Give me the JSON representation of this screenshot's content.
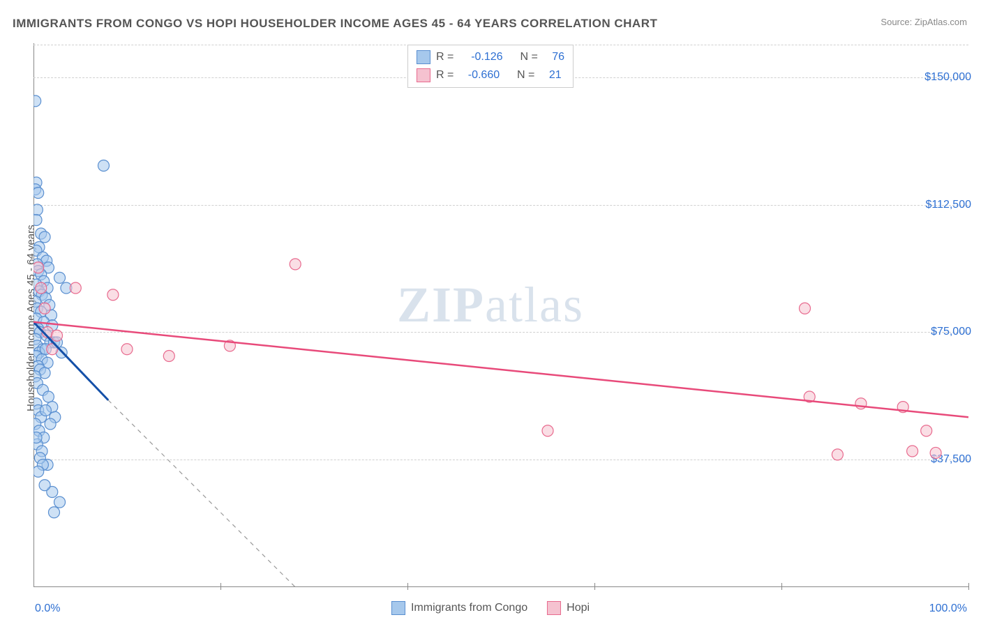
{
  "title": "IMMIGRANTS FROM CONGO VS HOPI HOUSEHOLDER INCOME AGES 45 - 64 YEARS CORRELATION CHART",
  "source_label": "Source:",
  "source_name": "ZipAtlas.com",
  "watermark": "ZIPatlas",
  "chart": {
    "type": "scatter",
    "ylabel": "Householder Income Ages 45 - 64 years",
    "xlim": [
      0,
      100
    ],
    "ylim": [
      0,
      160000
    ],
    "xticks": [
      0,
      20,
      40,
      60,
      80,
      100
    ],
    "xtick_labels": {
      "0": "0.0%",
      "100": "100.0%"
    },
    "yticks": [
      37500,
      75000,
      112500,
      150000
    ],
    "ytick_labels": [
      "$37,500",
      "$75,000",
      "$112,500",
      "$150,000"
    ],
    "grid_color": "#d0d0d0",
    "axis_color": "#888888",
    "background_color": "#ffffff",
    "point_radius": 8,
    "point_opacity": 0.55,
    "series": [
      {
        "name": "Immigrants from Congo",
        "color_fill": "#a6c8ec",
        "color_stroke": "#5a8fd0",
        "R": "-0.126",
        "N": "76",
        "line_color": "#1450a8",
        "line_dash_color": "#999999",
        "line": {
          "x1": 0,
          "y1": 78000,
          "x2": 8,
          "y2": 55000
        },
        "line_dash": {
          "x1": 8,
          "y1": 55000,
          "x2": 28,
          "y2": 0
        },
        "points": [
          [
            0.2,
            143000
          ],
          [
            0.3,
            119000
          ],
          [
            0.2,
            117000
          ],
          [
            0.5,
            116000
          ],
          [
            0.4,
            111000
          ],
          [
            0.3,
            108000
          ],
          [
            0.8,
            104000
          ],
          [
            1.2,
            103000
          ],
          [
            0.6,
            100000
          ],
          [
            0.3,
            99000
          ],
          [
            1.0,
            97000
          ],
          [
            1.4,
            96000
          ],
          [
            0.4,
            95000
          ],
          [
            1.6,
            94000
          ],
          [
            0.5,
            93000
          ],
          [
            0.8,
            92000
          ],
          [
            2.8,
            91000
          ],
          [
            1.1,
            90000
          ],
          [
            0.3,
            89000
          ],
          [
            1.5,
            88000
          ],
          [
            3.5,
            88000
          ],
          [
            0.6,
            87000
          ],
          [
            0.9,
            86000
          ],
          [
            1.3,
            85000
          ],
          [
            0.2,
            84000
          ],
          [
            1.7,
            83000
          ],
          [
            0.4,
            82000
          ],
          [
            0.8,
            81000
          ],
          [
            1.9,
            80000
          ],
          [
            0.3,
            79000
          ],
          [
            1.1,
            78000
          ],
          [
            2.0,
            77000
          ],
          [
            0.5,
            76000
          ],
          [
            0.7,
            75000
          ],
          [
            1.4,
            74000
          ],
          [
            0.2,
            73000
          ],
          [
            1.8,
            72000
          ],
          [
            2.2,
            72000
          ],
          [
            0.4,
            71000
          ],
          [
            1.0,
            70000
          ],
          [
            0.6,
            69000
          ],
          [
            2.5,
            72000
          ],
          [
            1.3,
            70000
          ],
          [
            3.0,
            69000
          ],
          [
            0.3,
            68000
          ],
          [
            0.9,
            67000
          ],
          [
            1.5,
            66000
          ],
          [
            0.5,
            65000
          ],
          [
            0.7,
            64000
          ],
          [
            1.2,
            63000
          ],
          [
            0.2,
            62000
          ],
          [
            0.4,
            60000
          ],
          [
            1.0,
            58000
          ],
          [
            1.6,
            56000
          ],
          [
            0.3,
            54000
          ],
          [
            2.0,
            53000
          ],
          [
            0.5,
            52000
          ],
          [
            0.8,
            50000
          ],
          [
            1.3,
            52000
          ],
          [
            0.2,
            48000
          ],
          [
            0.6,
            46000
          ],
          [
            1.1,
            44000
          ],
          [
            2.3,
            50000
          ],
          [
            1.8,
            48000
          ],
          [
            0.4,
            42000
          ],
          [
            0.9,
            40000
          ],
          [
            1.5,
            36000
          ],
          [
            2.0,
            28000
          ],
          [
            2.8,
            25000
          ],
          [
            2.2,
            22000
          ],
          [
            0.3,
            44000
          ],
          [
            0.7,
            38000
          ],
          [
            1.0,
            36000
          ],
          [
            0.5,
            34000
          ],
          [
            7.5,
            124000
          ],
          [
            1.2,
            30000
          ]
        ]
      },
      {
        "name": "Hopi",
        "color_fill": "#f5c2d0",
        "color_stroke": "#e86a8e",
        "R": "-0.660",
        "N": "21",
        "line_color": "#e84a7a",
        "line": {
          "x1": 0,
          "y1": 78000,
          "x2": 100,
          "y2": 50000
        },
        "points": [
          [
            0.5,
            94000
          ],
          [
            0.8,
            88000
          ],
          [
            1.2,
            82000
          ],
          [
            1.5,
            75000
          ],
          [
            2.0,
            70000
          ],
          [
            2.5,
            74000
          ],
          [
            4.5,
            88000
          ],
          [
            8.5,
            86000
          ],
          [
            10.0,
            70000
          ],
          [
            14.5,
            68000
          ],
          [
            21.0,
            71000
          ],
          [
            28.0,
            95000
          ],
          [
            55.0,
            46000
          ],
          [
            82.5,
            82000
          ],
          [
            83.0,
            56000
          ],
          [
            86.0,
            39000
          ],
          [
            88.5,
            54000
          ],
          [
            93.0,
            53000
          ],
          [
            94.0,
            40000
          ],
          [
            95.5,
            46000
          ],
          [
            96.5,
            39500
          ]
        ]
      }
    ],
    "legend_bottom": [
      {
        "label": "Immigrants from Congo",
        "fill": "#a6c8ec",
        "stroke": "#5a8fd0"
      },
      {
        "label": "Hopi",
        "fill": "#f5c2d0",
        "stroke": "#e86a8e"
      }
    ]
  }
}
